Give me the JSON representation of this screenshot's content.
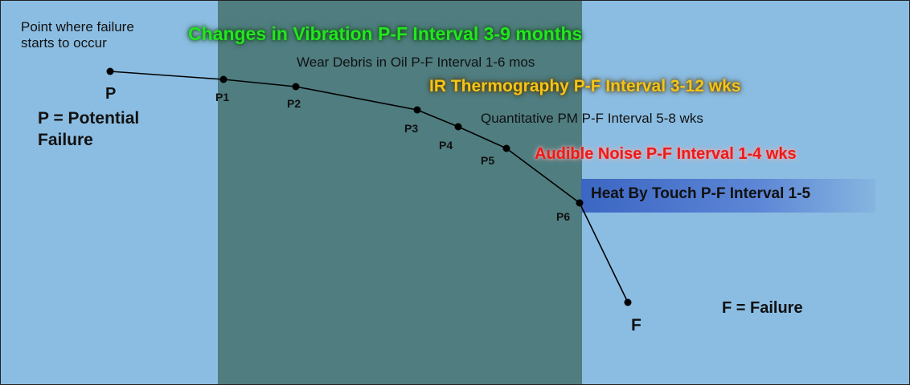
{
  "intro_text": "Point where failure starts to occur",
  "p_label": "P",
  "p_definition": "P = Potential Failure",
  "f_label": "F",
  "f_definition": "F = Failure",
  "points": [
    {
      "label": "P1"
    },
    {
      "label": "P2"
    },
    {
      "label": "P3"
    },
    {
      "label": "P4"
    },
    {
      "label": "P5"
    },
    {
      "label": "P6"
    }
  ],
  "intervals": {
    "vibration": "Changes in Vibration P-F Interval 3-9 months",
    "wear_debris": "Wear Debris in Oil P-F Interval  1-6 mos",
    "ir": "IR Thermography P-F Interval 3-12 wks",
    "quantitative_pm": "Quantitative PM P-F Interval  5-8 wks",
    "audible": "Audible Noise P-F Interval 1-4 wks",
    "heat_touch": "Heat By  Touch P-F Interval 1-5"
  },
  "colors": {
    "background": "#8bbde2",
    "band": "#4f7d80",
    "vibration": "#22e61f",
    "ir": "#f4c518",
    "audible": "#ea1b1b",
    "heat_box": "#3b66c3"
  }
}
